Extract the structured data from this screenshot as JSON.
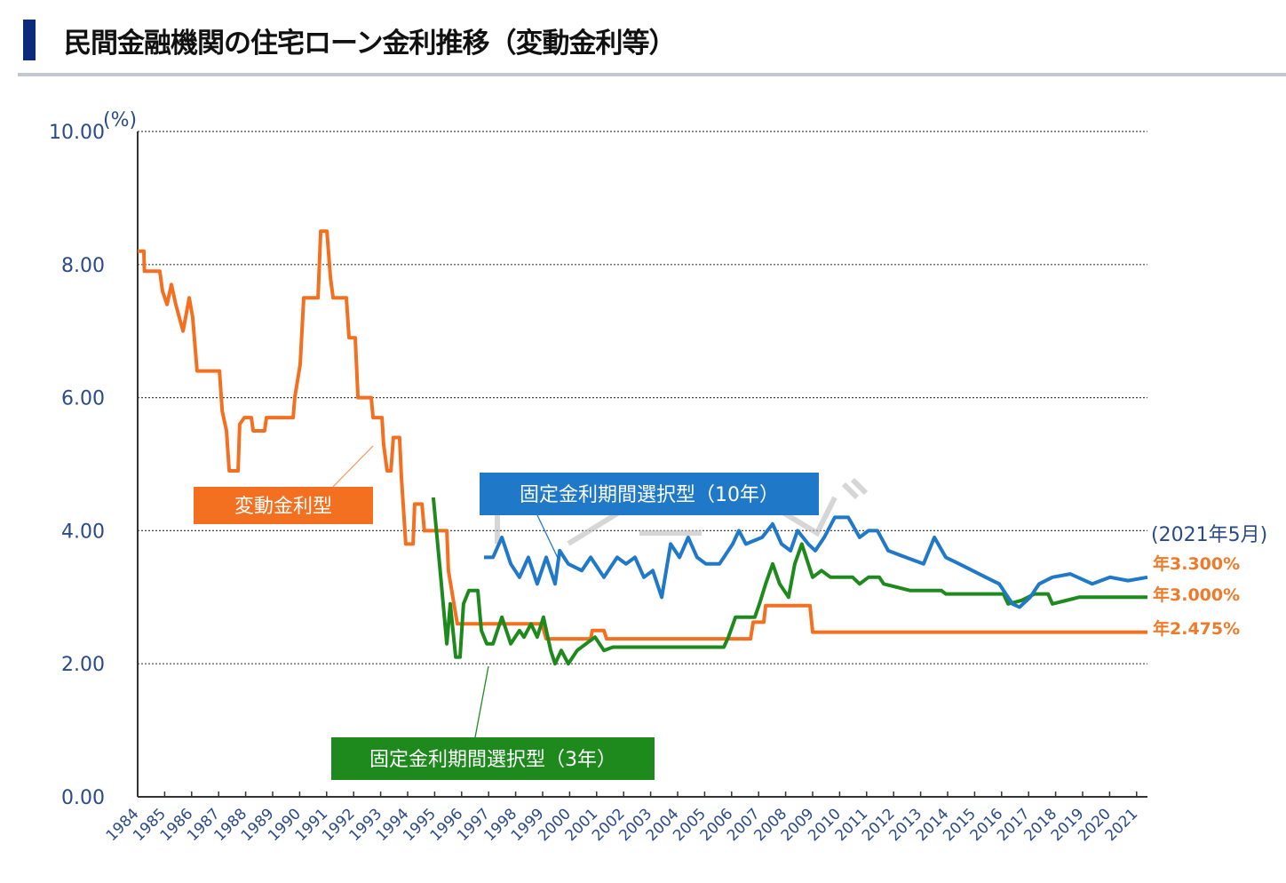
{
  "header": {
    "title": "民間金融機関の住宅ローン金利推移（変動金利等）",
    "accent": "#0d2a7a"
  },
  "chart_data": {
    "type": "line",
    "ylabel": "(%)",
    "ylim": [
      0,
      10
    ],
    "yticks": [
      "0.00",
      "2.00",
      "4.00",
      "6.00",
      "8.00",
      "10.00"
    ],
    "xlim": [
      1984,
      2021.4
    ],
    "xticks": [
      "1984",
      "1985",
      "1986",
      "1987",
      "1988",
      "1989",
      "1990",
      "1991",
      "1992",
      "1993",
      "1994",
      "1995",
      "1996",
      "1997",
      "1998",
      "1999",
      "2000",
      "2001",
      "2002",
      "2003",
      "2004",
      "2005",
      "2006",
      "2007",
      "2008",
      "2009",
      "2010",
      "2011",
      "2012",
      "2013",
      "2014",
      "2015",
      "2016",
      "2017",
      "2018",
      "2019",
      "2020",
      "2021"
    ],
    "grid": true,
    "annotation_date": "(2021年5月)",
    "series": [
      {
        "name": "変動金利型",
        "color": "#f37021",
        "end_label": "年2.475%",
        "points": [
          [
            1984.0,
            8.2
          ],
          [
            1984.23,
            8.2
          ],
          [
            1984.25,
            7.9
          ],
          [
            1984.82,
            7.9
          ],
          [
            1984.92,
            7.6
          ],
          [
            1985.09,
            7.4
          ],
          [
            1985.25,
            7.7
          ],
          [
            1985.41,
            7.4
          ],
          [
            1985.68,
            7.0
          ],
          [
            1985.91,
            7.5
          ],
          [
            1986.04,
            7.2
          ],
          [
            1986.2,
            6.4
          ],
          [
            1987.03,
            6.4
          ],
          [
            1987.13,
            5.8
          ],
          [
            1987.29,
            5.5
          ],
          [
            1987.39,
            4.9
          ],
          [
            1987.72,
            4.9
          ],
          [
            1987.78,
            5.6
          ],
          [
            1987.95,
            5.7
          ],
          [
            1988.21,
            5.7
          ],
          [
            1988.28,
            5.5
          ],
          [
            1988.7,
            5.5
          ],
          [
            1988.77,
            5.7
          ],
          [
            1989.76,
            5.7
          ],
          [
            1989.82,
            6.0
          ],
          [
            1990.02,
            6.5
          ],
          [
            1990.15,
            7.5
          ],
          [
            1990.68,
            7.5
          ],
          [
            1990.78,
            8.5
          ],
          [
            1991.01,
            8.5
          ],
          [
            1991.14,
            7.8
          ],
          [
            1991.24,
            7.5
          ],
          [
            1991.73,
            7.5
          ],
          [
            1991.83,
            6.9
          ],
          [
            1992.06,
            6.9
          ],
          [
            1992.16,
            6.0
          ],
          [
            1992.65,
            6.0
          ],
          [
            1992.72,
            5.7
          ],
          [
            1993.05,
            5.7
          ],
          [
            1993.11,
            5.3
          ],
          [
            1993.24,
            4.9
          ],
          [
            1993.38,
            4.9
          ],
          [
            1993.47,
            5.4
          ],
          [
            1993.7,
            5.4
          ],
          [
            1993.77,
            4.8
          ],
          [
            1993.93,
            3.8
          ],
          [
            1994.2,
            3.8
          ],
          [
            1994.26,
            4.4
          ],
          [
            1994.53,
            4.4
          ],
          [
            1994.62,
            4.0
          ],
          [
            1995.45,
            4.0
          ],
          [
            1995.51,
            3.4
          ],
          [
            1995.84,
            2.6
          ],
          [
            1998.97,
            2.6
          ],
          [
            1999.13,
            2.375
          ],
          [
            2000.78,
            2.375
          ],
          [
            2000.84,
            2.5
          ],
          [
            2001.27,
            2.5
          ],
          [
            2001.37,
            2.375
          ],
          [
            2006.7,
            2.375
          ],
          [
            2006.8,
            2.625
          ],
          [
            2007.19,
            2.625
          ],
          [
            2007.26,
            2.875
          ],
          [
            2008.9,
            2.875
          ],
          [
            2009.0,
            2.475
          ],
          [
            2021.4,
            2.475
          ]
        ]
      },
      {
        "name": "固定金利期間選択型（3年）",
        "color": "#1e8a1e",
        "end_label": "年3.000%",
        "points": [
          [
            1994.95,
            4.5
          ],
          [
            1995.18,
            3.5
          ],
          [
            1995.45,
            2.3
          ],
          [
            1995.58,
            2.9
          ],
          [
            1995.78,
            2.1
          ],
          [
            1995.94,
            2.1
          ],
          [
            1996.07,
            2.9
          ],
          [
            1996.27,
            3.1
          ],
          [
            1996.6,
            3.1
          ],
          [
            1996.73,
            2.5
          ],
          [
            1996.93,
            2.3
          ],
          [
            1997.16,
            2.3
          ],
          [
            1997.49,
            2.7
          ],
          [
            1997.82,
            2.3
          ],
          [
            1998.14,
            2.5
          ],
          [
            1998.31,
            2.4
          ],
          [
            1998.57,
            2.6
          ],
          [
            1998.8,
            2.4
          ],
          [
            1999.03,
            2.7
          ],
          [
            1999.3,
            2.2
          ],
          [
            1999.46,
            2.0
          ],
          [
            1999.69,
            2.2
          ],
          [
            1999.95,
            2.0
          ],
          [
            2000.28,
            2.2
          ],
          [
            2000.61,
            2.3
          ],
          [
            2000.94,
            2.4
          ],
          [
            2001.27,
            2.2
          ],
          [
            2001.6,
            2.25
          ],
          [
            2005.71,
            2.25
          ],
          [
            2005.88,
            2.4
          ],
          [
            2006.14,
            2.7
          ],
          [
            2006.86,
            2.7
          ],
          [
            2007.03,
            2.9
          ],
          [
            2007.26,
            3.2
          ],
          [
            2007.52,
            3.5
          ],
          [
            2007.78,
            3.2
          ],
          [
            2008.11,
            3.0
          ],
          [
            2008.34,
            3.5
          ],
          [
            2008.6,
            3.8
          ],
          [
            2009.0,
            3.3
          ],
          [
            2009.33,
            3.4
          ],
          [
            2009.66,
            3.3
          ],
          [
            2010.48,
            3.3
          ],
          [
            2010.74,
            3.2
          ],
          [
            2011.07,
            3.3
          ],
          [
            2011.47,
            3.3
          ],
          [
            2011.63,
            3.2
          ],
          [
            2012.62,
            3.1
          ],
          [
            2013.77,
            3.1
          ],
          [
            2013.93,
            3.05
          ],
          [
            2016.07,
            3.05
          ],
          [
            2016.24,
            2.9
          ],
          [
            2016.73,
            2.95
          ],
          [
            2017.22,
            3.05
          ],
          [
            2017.72,
            3.05
          ],
          [
            2017.88,
            2.9
          ],
          [
            2018.38,
            2.95
          ],
          [
            2018.87,
            3.0
          ],
          [
            2021.4,
            3.0
          ]
        ]
      },
      {
        "name": "固定金利期間選択型（10年）",
        "color": "#1f78c8",
        "end_label": "年3.300%",
        "points": [
          [
            1996.83,
            3.6
          ],
          [
            1997.16,
            3.6
          ],
          [
            1997.49,
            3.9
          ],
          [
            1997.82,
            3.5
          ],
          [
            1998.14,
            3.3
          ],
          [
            1998.47,
            3.6
          ],
          [
            1998.8,
            3.2
          ],
          [
            1999.13,
            3.6
          ],
          [
            1999.46,
            3.2
          ],
          [
            1999.63,
            3.7
          ],
          [
            1999.95,
            3.5
          ],
          [
            2000.45,
            3.4
          ],
          [
            2000.78,
            3.6
          ],
          [
            2001.27,
            3.3
          ],
          [
            2001.76,
            3.6
          ],
          [
            2002.09,
            3.5
          ],
          [
            2002.42,
            3.6
          ],
          [
            2002.75,
            3.3
          ],
          [
            2003.08,
            3.4
          ],
          [
            2003.41,
            3.0
          ],
          [
            2003.74,
            3.8
          ],
          [
            2004.07,
            3.6
          ],
          [
            2004.39,
            3.9
          ],
          [
            2004.72,
            3.6
          ],
          [
            2005.05,
            3.5
          ],
          [
            2005.55,
            3.5
          ],
          [
            2006.04,
            3.8
          ],
          [
            2006.27,
            4.0
          ],
          [
            2006.53,
            3.8
          ],
          [
            2007.13,
            3.9
          ],
          [
            2007.52,
            4.1
          ],
          [
            2007.85,
            3.8
          ],
          [
            2008.18,
            3.7
          ],
          [
            2008.44,
            4.0
          ],
          [
            2008.84,
            3.8
          ],
          [
            2009.1,
            3.7
          ],
          [
            2009.43,
            3.9
          ],
          [
            2009.82,
            4.2
          ],
          [
            2010.32,
            4.2
          ],
          [
            2010.74,
            3.9
          ],
          [
            2011.07,
            4.0
          ],
          [
            2011.4,
            4.0
          ],
          [
            2011.8,
            3.7
          ],
          [
            2012.45,
            3.6
          ],
          [
            2013.11,
            3.5
          ],
          [
            2013.51,
            3.9
          ],
          [
            2013.93,
            3.6
          ],
          [
            2014.43,
            3.5
          ],
          [
            2014.92,
            3.4
          ],
          [
            2015.41,
            3.3
          ],
          [
            2015.91,
            3.2
          ],
          [
            2016.4,
            2.9
          ],
          [
            2016.66,
            2.85
          ],
          [
            2017.06,
            3.0
          ],
          [
            2017.39,
            3.2
          ],
          [
            2017.88,
            3.3
          ],
          [
            2018.54,
            3.35
          ],
          [
            2019.36,
            3.2
          ],
          [
            2020.02,
            3.3
          ],
          [
            2020.68,
            3.25
          ],
          [
            2021.4,
            3.3
          ]
        ]
      }
    ]
  }
}
